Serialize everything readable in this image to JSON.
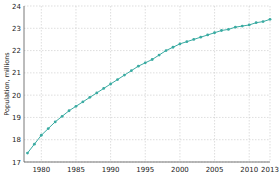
{
  "chart_data": {
    "type": "line",
    "y_label": "Population, millions",
    "x": [
      1978,
      1979,
      1980,
      1981,
      1982,
      1983,
      1984,
      1985,
      1986,
      1987,
      1988,
      1989,
      1990,
      1991,
      1992,
      1993,
      1994,
      1995,
      1996,
      1997,
      1998,
      1999,
      2000,
      2001,
      2002,
      2003,
      2004,
      2005,
      2006,
      2007,
      2008,
      2009,
      2010,
      2011,
      2012,
      2013
    ],
    "values": [
      17.4,
      17.8,
      18.2,
      18.5,
      18.8,
      19.05,
      19.3,
      19.5,
      19.7,
      19.9,
      20.1,
      20.3,
      20.5,
      20.7,
      20.9,
      21.1,
      21.3,
      21.45,
      21.6,
      21.8,
      22.0,
      22.15,
      22.3,
      22.4,
      22.5,
      22.6,
      22.7,
      22.8,
      22.9,
      22.95,
      23.05,
      23.1,
      23.15,
      23.25,
      23.3,
      23.4
    ],
    "color": "#3aaba2",
    "marker": "circle",
    "line_style": "solid",
    "xlim": [
      1977.5,
      2013
    ],
    "xticks": [
      1980,
      1985,
      1990,
      1995,
      2000,
      2005,
      2010,
      2013
    ],
    "ylim": [
      17,
      24
    ],
    "yticks": [
      17,
      18,
      19,
      20,
      21,
      22,
      23,
      24
    ],
    "grid": true
  }
}
